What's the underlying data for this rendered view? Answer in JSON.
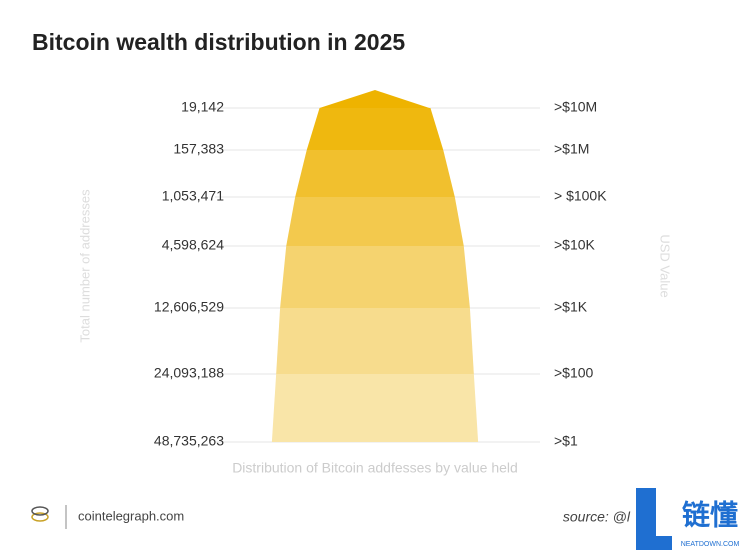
{
  "chart_data": {
    "type": "pyramid",
    "title": "Bitcoin wealth distribution in 2025",
    "y_label": "Total number of addresses",
    "y2_label": "USD Value",
    "x_label": "Distribution of Bitcoin addfesses by value held",
    "categories": [
      ">$10M",
      ">$1M",
      "> $100K",
      ">$10K",
      ">$1K",
      ">$100",
      ">$1"
    ],
    "values": [
      19142,
      157383,
      1053471,
      4598624,
      12606529,
      24093188,
      48735263
    ],
    "value_labels": [
      "19,142",
      "157,383",
      "1,053,471",
      "4,598,624",
      "12,606,529",
      "24,093,188",
      "48,735,263"
    ],
    "colors": [
      "#eeb300",
      "#efb80f",
      "#f1c02e",
      "#f3c94d",
      "#f5d36f",
      "#f7dc8d",
      "#f9e5a8"
    ],
    "grid": true
  },
  "footer": {
    "site": "cointelegraph.com",
    "source": "source: @l"
  },
  "watermark": {
    "text": "链懂",
    "subtext": "NEATDOWN.COM"
  }
}
